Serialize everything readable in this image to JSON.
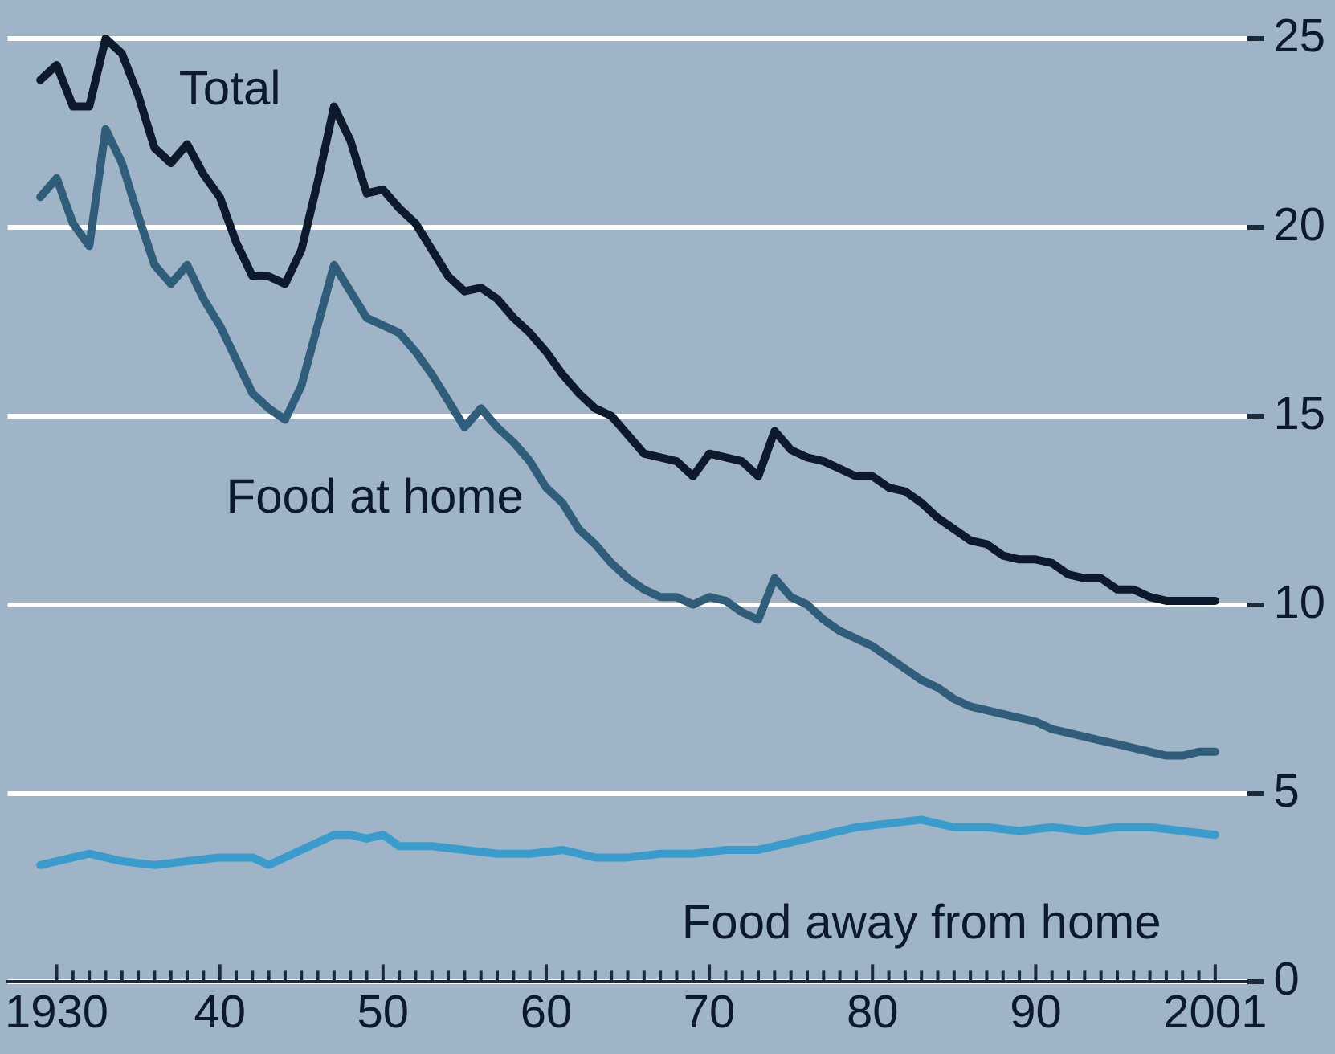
{
  "chart_data": {
    "type": "line",
    "xlim": [
      1927,
      2003
    ],
    "ylim": [
      0,
      25
    ],
    "yticks": [
      0,
      5,
      10,
      15,
      20,
      25
    ],
    "xticks": [
      {
        "value": 1930,
        "label": "1930"
      },
      {
        "value": 1931,
        "label": null
      },
      {
        "value": 1932,
        "label": null
      },
      {
        "value": 1933,
        "label": null
      },
      {
        "value": 1934,
        "label": null
      },
      {
        "value": 1935,
        "label": null
      },
      {
        "value": 1936,
        "label": null
      },
      {
        "value": 1937,
        "label": null
      },
      {
        "value": 1938,
        "label": null
      },
      {
        "value": 1939,
        "label": null
      },
      {
        "value": 1940,
        "label": "40"
      },
      {
        "value": 1941,
        "label": null
      },
      {
        "value": 1942,
        "label": null
      },
      {
        "value": 1943,
        "label": null
      },
      {
        "value": 1944,
        "label": null
      },
      {
        "value": 1945,
        "label": null
      },
      {
        "value": 1946,
        "label": null
      },
      {
        "value": 1947,
        "label": null
      },
      {
        "value": 1948,
        "label": null
      },
      {
        "value": 1949,
        "label": null
      },
      {
        "value": 1950,
        "label": "50"
      },
      {
        "value": 1951,
        "label": null
      },
      {
        "value": 1952,
        "label": null
      },
      {
        "value": 1953,
        "label": null
      },
      {
        "value": 1954,
        "label": null
      },
      {
        "value": 1955,
        "label": null
      },
      {
        "value": 1956,
        "label": null
      },
      {
        "value": 1957,
        "label": null
      },
      {
        "value": 1958,
        "label": null
      },
      {
        "value": 1959,
        "label": null
      },
      {
        "value": 1960,
        "label": "60"
      },
      {
        "value": 1961,
        "label": null
      },
      {
        "value": 1962,
        "label": null
      },
      {
        "value": 1963,
        "label": null
      },
      {
        "value": 1964,
        "label": null
      },
      {
        "value": 1965,
        "label": null
      },
      {
        "value": 1966,
        "label": null
      },
      {
        "value": 1967,
        "label": null
      },
      {
        "value": 1968,
        "label": null
      },
      {
        "value": 1969,
        "label": null
      },
      {
        "value": 1970,
        "label": "70"
      },
      {
        "value": 1971,
        "label": null
      },
      {
        "value": 1972,
        "label": null
      },
      {
        "value": 1973,
        "label": null
      },
      {
        "value": 1974,
        "label": null
      },
      {
        "value": 1975,
        "label": null
      },
      {
        "value": 1976,
        "label": null
      },
      {
        "value": 1977,
        "label": null
      },
      {
        "value": 1978,
        "label": null
      },
      {
        "value": 1979,
        "label": null
      },
      {
        "value": 1980,
        "label": "80"
      },
      {
        "value": 1981,
        "label": null
      },
      {
        "value": 1982,
        "label": null
      },
      {
        "value": 1983,
        "label": null
      },
      {
        "value": 1984,
        "label": null
      },
      {
        "value": 1985,
        "label": null
      },
      {
        "value": 1986,
        "label": null
      },
      {
        "value": 1987,
        "label": null
      },
      {
        "value": 1988,
        "label": null
      },
      {
        "value": 1989,
        "label": null
      },
      {
        "value": 1990,
        "label": "90"
      },
      {
        "value": 1991,
        "label": null
      },
      {
        "value": 1992,
        "label": null
      },
      {
        "value": 1993,
        "label": null
      },
      {
        "value": 1994,
        "label": null
      },
      {
        "value": 1995,
        "label": null
      },
      {
        "value": 1996,
        "label": null
      },
      {
        "value": 1997,
        "label": null
      },
      {
        "value": 1998,
        "label": null
      },
      {
        "value": 1999,
        "label": null
      },
      {
        "value": 2000,
        "label": null
      },
      {
        "value": 2001,
        "label": "2001"
      }
    ],
    "grid": "y",
    "legend": false,
    "marker": "none",
    "line_style": "solid",
    "series": [
      {
        "name": "Total",
        "color": "#0d1a2b",
        "x": [
          1929,
          1930,
          1931,
          1932,
          1933,
          1934,
          1935,
          1936,
          1937,
          1938,
          1939,
          1940,
          1941,
          1942,
          1943,
          1944,
          1945,
          1946,
          1947,
          1948,
          1949,
          1950,
          1951,
          1952,
          1953,
          1954,
          1955,
          1956,
          1957,
          1958,
          1959,
          1960,
          1961,
          1962,
          1963,
          1964,
          1965,
          1966,
          1967,
          1968,
          1969,
          1970,
          1971,
          1972,
          1973,
          1974,
          1975,
          1976,
          1977,
          1978,
          1979,
          1980,
          1981,
          1982,
          1983,
          1984,
          1985,
          1986,
          1987,
          1988,
          1989,
          1990,
          1991,
          1992,
          1993,
          1994,
          1995,
          1996,
          1997,
          1998,
          1999,
          2000,
          2001
        ],
        "values": [
          23.9,
          24.3,
          23.2,
          23.2,
          25.0,
          24.6,
          23.5,
          22.1,
          21.7,
          22.2,
          21.4,
          20.8,
          19.6,
          18.7,
          18.7,
          18.5,
          19.4,
          21.2,
          23.2,
          22.3,
          20.9,
          21.0,
          20.5,
          20.1,
          19.4,
          18.7,
          18.3,
          18.4,
          18.1,
          17.6,
          17.2,
          16.7,
          16.1,
          15.6,
          15.2,
          15.0,
          14.5,
          14.0,
          13.9,
          13.8,
          13.4,
          14.0,
          13.9,
          13.8,
          13.4,
          14.6,
          14.1,
          13.9,
          13.8,
          13.6,
          13.4,
          13.4,
          13.1,
          13.0,
          12.7,
          12.3,
          12.0,
          11.7,
          11.6,
          11.3,
          11.2,
          11.2,
          11.1,
          10.8,
          10.7,
          10.7,
          10.4,
          10.4,
          10.2,
          10.1,
          10.1,
          10.1,
          10.1
        ]
      },
      {
        "name": "Food at home",
        "color": "#2f5d7a",
        "x": [
          1929,
          1930,
          1931,
          1932,
          1933,
          1934,
          1935,
          1936,
          1937,
          1938,
          1939,
          1940,
          1941,
          1942,
          1943,
          1944,
          1945,
          1946,
          1947,
          1948,
          1949,
          1950,
          1951,
          1952,
          1953,
          1954,
          1955,
          1956,
          1957,
          1958,
          1959,
          1960,
          1961,
          1962,
          1963,
          1964,
          1965,
          1966,
          1967,
          1968,
          1969,
          1970,
          1971,
          1972,
          1973,
          1974,
          1975,
          1976,
          1977,
          1978,
          1979,
          1980,
          1981,
          1982,
          1983,
          1984,
          1985,
          1986,
          1987,
          1988,
          1989,
          1990,
          1991,
          1992,
          1993,
          1994,
          1995,
          1996,
          1997,
          1998,
          1999,
          2000,
          2001
        ],
        "values": [
          20.8,
          21.3,
          20.1,
          19.5,
          22.6,
          21.7,
          20.3,
          19.0,
          18.5,
          19.0,
          18.1,
          17.4,
          16.5,
          15.6,
          15.2,
          14.9,
          15.8,
          17.4,
          19.0,
          18.3,
          17.6,
          17.4,
          17.2,
          16.7,
          16.1,
          15.4,
          14.7,
          15.2,
          14.7,
          14.3,
          13.8,
          13.1,
          12.7,
          12.0,
          11.6,
          11.1,
          10.7,
          10.4,
          10.2,
          10.2,
          10.0,
          10.2,
          10.1,
          9.8,
          9.6,
          10.7,
          10.2,
          10.0,
          9.6,
          9.3,
          9.1,
          8.9,
          8.6,
          8.3,
          8.0,
          7.8,
          7.5,
          7.3,
          7.2,
          7.1,
          7.0,
          6.9,
          6.7,
          6.6,
          6.5,
          6.4,
          6.3,
          6.2,
          6.1,
          6.0,
          6.0,
          6.1,
          6.1
        ]
      },
      {
        "name": "Food away from home",
        "color": "#3a9ccc",
        "x": [
          1929,
          1931,
          1932,
          1934,
          1936,
          1938,
          1940,
          1942,
          1943,
          1945,
          1947,
          1948,
          1949,
          1950,
          1951,
          1953,
          1955,
          1957,
          1959,
          1961,
          1963,
          1965,
          1967,
          1969,
          1971,
          1973,
          1975,
          1977,
          1979,
          1981,
          1983,
          1985,
          1987,
          1989,
          1991,
          1993,
          1995,
          1997,
          1999,
          2001
        ],
        "values": [
          3.1,
          3.3,
          3.4,
          3.2,
          3.1,
          3.2,
          3.3,
          3.3,
          3.1,
          3.5,
          3.9,
          3.9,
          3.8,
          3.9,
          3.6,
          3.6,
          3.5,
          3.4,
          3.4,
          3.5,
          3.3,
          3.3,
          3.4,
          3.4,
          3.5,
          3.5,
          3.7,
          3.9,
          4.1,
          4.2,
          4.3,
          4.1,
          4.1,
          4.0,
          4.1,
          4.0,
          4.1,
          4.1,
          4.0,
          3.9
        ]
      }
    ]
  }
}
